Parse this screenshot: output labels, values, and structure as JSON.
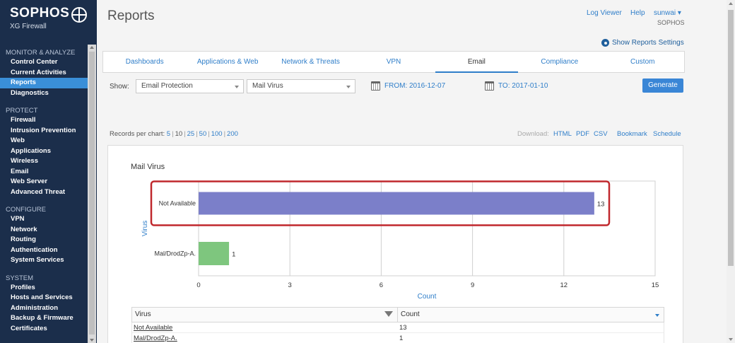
{
  "brand": {
    "name": "SOPHOS",
    "product": "XG Firewall"
  },
  "sidebar": {
    "sections": [
      {
        "title": "MONITOR & ANALYZE",
        "items": [
          "Control Center",
          "Current Activities",
          "Reports",
          "Diagnostics"
        ]
      },
      {
        "title": "PROTECT",
        "items": [
          "Firewall",
          "Intrusion Prevention",
          "Web",
          "Applications",
          "Wireless",
          "Email",
          "Web Server",
          "Advanced Threat"
        ]
      },
      {
        "title": "CONFIGURE",
        "items": [
          "VPN",
          "Network",
          "Routing",
          "Authentication",
          "System Services"
        ]
      },
      {
        "title": "SYSTEM",
        "items": [
          "Profiles",
          "Hosts and Services",
          "Administration",
          "Backup & Firmware",
          "Certificates"
        ]
      }
    ],
    "active_item": "Reports"
  },
  "header": {
    "title": "Reports",
    "log_viewer": "Log Viewer",
    "help": "Help",
    "user": "sunwai",
    "org": "SOPHOS",
    "settings": "Show Reports Settings"
  },
  "tabs": [
    "Dashboards",
    "Applications & Web",
    "Network & Threats",
    "VPN",
    "Email",
    "Compliance",
    "Custom"
  ],
  "active_tab": "Email",
  "filters": {
    "show_label": "Show:",
    "report_group": "Email Protection",
    "report": "Mail Virus",
    "from": "FROM: 2016-12-07",
    "to": "TO: 2017-01-10",
    "generate": "Generate"
  },
  "records": {
    "label": "Records per chart:",
    "options": [
      "5",
      "10",
      "25",
      "50",
      "100",
      "200"
    ],
    "selected": "10"
  },
  "download": {
    "label": "Download:",
    "html": "HTML",
    "pdf": "PDF",
    "csv": "CSV",
    "bookmark": "Bookmark",
    "schedule": "Schedule"
  },
  "chart_data": {
    "type": "bar",
    "orientation": "horizontal",
    "title": "Mail Virus",
    "xlabel": "Count",
    "ylabel": "Virus",
    "xlim": [
      0,
      15
    ],
    "xticks": [
      0,
      3,
      6,
      9,
      12,
      15
    ],
    "categories": [
      "Not Available",
      "Mal/DrodZp-A."
    ],
    "values": [
      13,
      1
    ],
    "colors": [
      "#7b7fc9",
      "#7ec67e"
    ],
    "grid": true,
    "highlighted_category": "Not Available"
  },
  "table": {
    "headers": [
      "Virus",
      "Count"
    ],
    "rows": [
      [
        "Not Available",
        "13"
      ],
      [
        "Mal/DrodZp-A.",
        "1"
      ]
    ]
  }
}
